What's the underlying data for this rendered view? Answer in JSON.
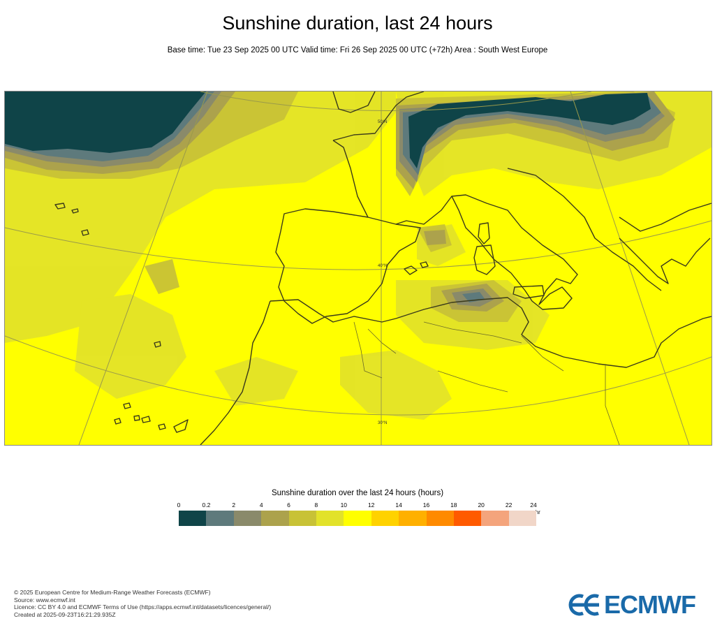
{
  "title": "Sunshine duration, last 24 hours",
  "subtitle": "Base time: Tue 23 Sep 2025 00 UTC Valid time: Fri 26 Sep 2025 00 UTC (+72h) Area : South West Europe",
  "map": {
    "area": "South West Europe",
    "latitude_labels": [
      "50°N",
      "40°N",
      "30°N"
    ],
    "colors": {
      "sea_background": "#ffff00",
      "coast": "#3a3a1a",
      "graticule": "#9a9a4a"
    }
  },
  "legend": {
    "title": "Sunshine duration over the last 24 hours (hours)",
    "unit": "-hr",
    "ticks": [
      "0",
      "0.2",
      "2",
      "4",
      "6",
      "8",
      "10",
      "12",
      "14",
      "16",
      "18",
      "20",
      "22",
      "24"
    ],
    "colors": [
      "#0f4448",
      "#5e7a7c",
      "#8a8a6a",
      "#aca24c",
      "#c8c236",
      "#e2e22a",
      "#ffff00",
      "#ffd200",
      "#ffb000",
      "#ff8a00",
      "#ff5a00",
      "#f4a47c",
      "#f1d6c8"
    ]
  },
  "footer": {
    "lines": [
      "© 2025 European Centre for Medium-Range Weather Forecasts (ECMWF)",
      "Source: www.ecmwf.int",
      "Licence: CC BY 4.0 and ECMWF Terms of Use (https://apps.ecmwf.int/datasets/licences/general/)",
      "Created at 2025-09-23T16:21:29.935Z"
    ]
  },
  "logo": {
    "text": "ECMWF",
    "color": "#1a6aa9"
  }
}
